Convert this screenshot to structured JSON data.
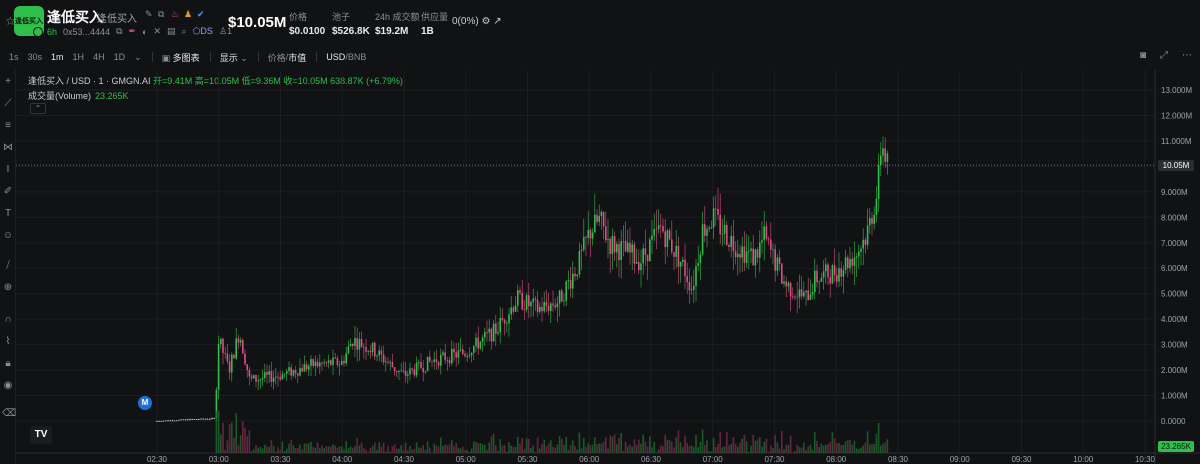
{
  "header": {
    "token_name": "逢低买入",
    "token_sub": "逢低买入",
    "logo_text": "逢低买入",
    "age": "6h",
    "address": "0x53...4444",
    "ds_label": "DS",
    "count": "1",
    "market_cap": "$10.05M",
    "stats": [
      {
        "label": "价格",
        "value": "$0.0100"
      },
      {
        "label": "池子",
        "value": "$526.8K"
      },
      {
        "label": "24h 成交额",
        "value": "$19.2M"
      },
      {
        "label": "供应量",
        "value": "1B"
      }
    ],
    "holder_pct": "0(0%)"
  },
  "toolbar": {
    "timeframes": [
      "1s",
      "30s",
      "1m",
      "1H",
      "4H",
      "1D"
    ],
    "active_timeframe": "1m",
    "multi_chart": "多图表",
    "display": "显示",
    "price_label": "价格",
    "mcap_label": "市值",
    "usd": "USD",
    "bnb": "BNB"
  },
  "legend": {
    "symbol": "逢低买入 / USD · 1 · GMGN.AI",
    "ohlc": "开=9.41M 高=10.05M 低=9.36M 收=10.05M 638.87K (+6.79%)",
    "volume_label": "成交量(Volume)",
    "volume_value": "23.265K"
  },
  "markers": {
    "m": "M",
    "tv": "TV"
  },
  "chart_data": {
    "type": "candlestick",
    "x_ticks": [
      "02:30",
      "03:00",
      "03:30",
      "04:00",
      "04:30",
      "05:00",
      "05:30",
      "06:00",
      "06:30",
      "07:00",
      "07:30",
      "08:00",
      "08:30",
      "09:00",
      "09:30",
      "10:00",
      "10:30"
    ],
    "y_ticks": [
      "13.000M",
      "12.000M",
      "11.000M",
      "10.000M",
      "9.000M",
      "8.000M",
      "7.000M",
      "6.000M",
      "5.000M",
      "4.000M",
      "3.000M",
      "2.000M",
      "1.000M",
      "0.0000"
    ],
    "ylim": [
      0,
      13
    ],
    "last_price_label": "10.05M",
    "last_price": 10.05,
    "volume_label": "23.265K",
    "price_path": [
      [
        "02:30",
        0.0
      ],
      [
        "02:58",
        0.1
      ],
      [
        "03:00",
        3.2
      ],
      [
        "03:05",
        2.0
      ],
      [
        "03:10",
        3.5
      ],
      [
        "03:15",
        1.6
      ],
      [
        "03:30",
        1.8
      ],
      [
        "03:45",
        2.2
      ],
      [
        "04:00",
        2.3
      ],
      [
        "04:05",
        3.2
      ],
      [
        "04:15",
        2.8
      ],
      [
        "04:25",
        2.1
      ],
      [
        "04:30",
        1.8
      ],
      [
        "04:45",
        2.4
      ],
      [
        "05:00",
        2.7
      ],
      [
        "05:15",
        3.6
      ],
      [
        "05:25",
        4.8
      ],
      [
        "05:35",
        4.4
      ],
      [
        "05:45",
        4.7
      ],
      [
        "05:55",
        6.2
      ],
      [
        "06:00",
        7.4
      ],
      [
        "06:05",
        7.9
      ],
      [
        "06:10",
        7.0
      ],
      [
        "06:25",
        6.3
      ],
      [
        "06:35",
        7.6
      ],
      [
        "06:45",
        6.2
      ],
      [
        "06:50",
        5.2
      ],
      [
        "06:55",
        7.5
      ],
      [
        "07:00",
        8.0
      ],
      [
        "07:10",
        7.0
      ],
      [
        "07:20",
        6.4
      ],
      [
        "07:25",
        7.2
      ],
      [
        "07:35",
        5.4
      ],
      [
        "07:45",
        4.8
      ],
      [
        "07:50",
        5.6
      ],
      [
        "08:00",
        5.9
      ],
      [
        "08:10",
        6.6
      ],
      [
        "08:15",
        7.4
      ],
      [
        "08:20",
        9.0
      ],
      [
        "08:22",
        11.0
      ],
      [
        "08:25",
        10.05
      ]
    ]
  }
}
